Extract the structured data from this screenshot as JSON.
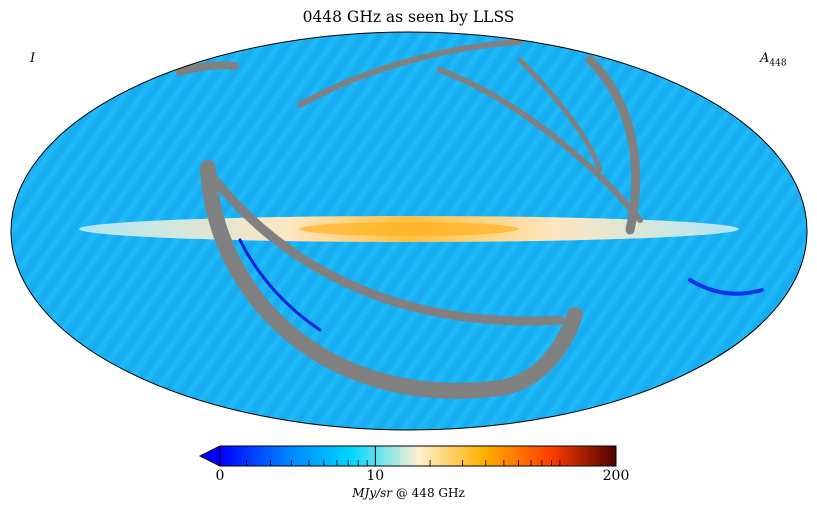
{
  "chart_data": {
    "type": "heatmap",
    "projection": "mollweide",
    "title": "0448 GHz as seen by LLSS",
    "corner_left": "I",
    "corner_right_main": "A",
    "corner_right_sub": "448",
    "colorbar": {
      "min": 0,
      "max": 200,
      "scale": "log",
      "ticks": [
        0,
        10,
        200
      ],
      "tick_labels": [
        "0",
        "10",
        "200"
      ],
      "label_italic": "MJy/sr",
      "label_rest": " @ 448 GHz",
      "extend": "min",
      "colormap": [
        "#0000ff",
        "#0080ff",
        "#00d8ff",
        "#fff0d0",
        "#ffb000",
        "#ff4000",
        "#500000"
      ]
    },
    "colors": {
      "background_field": "#1ab2f5",
      "galactic_plane": "#ffc040",
      "missing_pixels": "#808080"
    },
    "grid": false
  }
}
